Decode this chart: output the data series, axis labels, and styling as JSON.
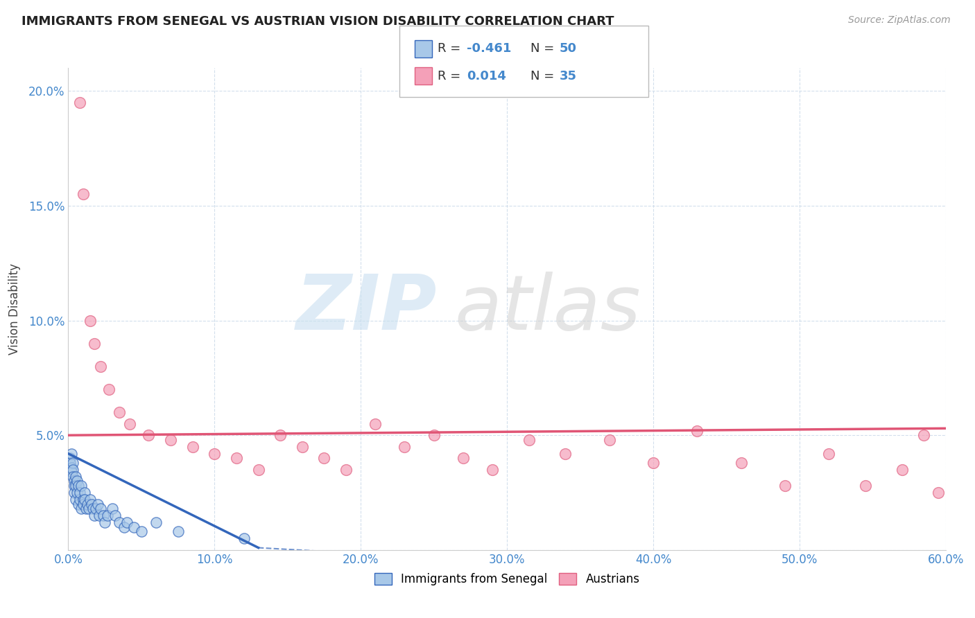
{
  "title": "IMMIGRANTS FROM SENEGAL VS AUSTRIAN VISION DISABILITY CORRELATION CHART",
  "source": "Source: ZipAtlas.com",
  "xlabel": "",
  "ylabel": "Vision Disability",
  "xlim": [
    0.0,
    0.6
  ],
  "ylim": [
    0.0,
    0.21
  ],
  "xtick_labels": [
    "0.0%",
    "10.0%",
    "20.0%",
    "30.0%",
    "40.0%",
    "50.0%",
    "60.0%"
  ],
  "xtick_vals": [
    0.0,
    0.1,
    0.2,
    0.3,
    0.4,
    0.5,
    0.6
  ],
  "ytick_labels": [
    "",
    "5.0%",
    "10.0%",
    "15.0%",
    "20.0%"
  ],
  "ytick_vals": [
    0.0,
    0.05,
    0.1,
    0.15,
    0.2
  ],
  "r_blue": -0.461,
  "n_blue": 50,
  "r_pink": 0.014,
  "n_pink": 35,
  "color_blue": "#a8c8e8",
  "color_pink": "#f4a0b8",
  "color_blue_dark": "#4488cc",
  "color_pink_dark": "#e06080",
  "line_blue": "#3366bb",
  "line_pink": "#e05575",
  "watermark_zip": "ZIP",
  "watermark_atlas": "atlas",
  "legend_label_blue": "Immigrants from Senegal",
  "legend_label_pink": "Austrians",
  "blue_x": [
    0.001,
    0.001,
    0.002,
    0.002,
    0.002,
    0.003,
    0.003,
    0.003,
    0.004,
    0.004,
    0.004,
    0.005,
    0.005,
    0.005,
    0.006,
    0.006,
    0.007,
    0.007,
    0.008,
    0.008,
    0.009,
    0.009,
    0.01,
    0.01,
    0.011,
    0.011,
    0.012,
    0.013,
    0.014,
    0.015,
    0.016,
    0.017,
    0.018,
    0.019,
    0.02,
    0.021,
    0.022,
    0.024,
    0.025,
    0.027,
    0.03,
    0.032,
    0.035,
    0.038,
    0.04,
    0.045,
    0.05,
    0.06,
    0.075,
    0.12
  ],
  "blue_y": [
    0.04,
    0.038,
    0.036,
    0.042,
    0.034,
    0.038,
    0.035,
    0.032,
    0.03,
    0.028,
    0.025,
    0.032,
    0.028,
    0.022,
    0.03,
    0.025,
    0.028,
    0.02,
    0.022,
    0.025,
    0.028,
    0.018,
    0.022,
    0.02,
    0.025,
    0.022,
    0.018,
    0.02,
    0.018,
    0.022,
    0.02,
    0.018,
    0.015,
    0.018,
    0.02,
    0.015,
    0.018,
    0.015,
    0.012,
    0.015,
    0.018,
    0.015,
    0.012,
    0.01,
    0.012,
    0.01,
    0.008,
    0.012,
    0.008,
    0.005
  ],
  "pink_x": [
    0.008,
    0.01,
    0.015,
    0.018,
    0.022,
    0.028,
    0.035,
    0.042,
    0.055,
    0.07,
    0.085,
    0.1,
    0.115,
    0.13,
    0.145,
    0.16,
    0.175,
    0.19,
    0.21,
    0.23,
    0.25,
    0.27,
    0.29,
    0.315,
    0.34,
    0.37,
    0.4,
    0.43,
    0.46,
    0.49,
    0.52,
    0.545,
    0.57,
    0.585,
    0.595
  ],
  "pink_y": [
    0.195,
    0.155,
    0.1,
    0.09,
    0.08,
    0.07,
    0.06,
    0.055,
    0.05,
    0.048,
    0.045,
    0.042,
    0.04,
    0.035,
    0.05,
    0.045,
    0.04,
    0.035,
    0.055,
    0.045,
    0.05,
    0.04,
    0.035,
    0.048,
    0.042,
    0.048,
    0.038,
    0.052,
    0.038,
    0.028,
    0.042,
    0.028,
    0.035,
    0.05,
    0.025
  ],
  "pink_line_y0": 0.05,
  "pink_line_y1": 0.053,
  "blue_line_x0": 0.0,
  "blue_line_y0": 0.042,
  "blue_line_x1": 0.13,
  "blue_line_y1": 0.001
}
